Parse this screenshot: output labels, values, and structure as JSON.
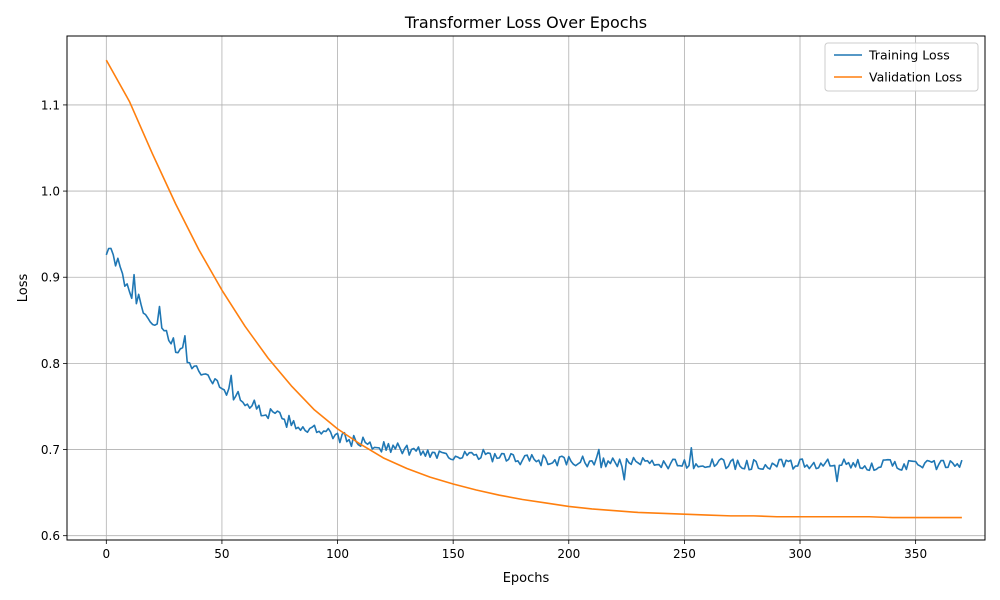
{
  "chart_data": {
    "type": "line",
    "title": "Transformer Loss Over Epochs",
    "xlabel": "Epochs",
    "ylabel": "Loss",
    "xlim": [
      -17,
      380
    ],
    "ylim": [
      0.595,
      1.18
    ],
    "xticks": [
      0,
      50,
      100,
      150,
      200,
      250,
      300,
      350
    ],
    "yticks": [
      0.6,
      0.7,
      0.8,
      0.9,
      1.0,
      1.1
    ],
    "ytick_labels": [
      "0.6",
      "0.7",
      "0.8",
      "0.9",
      "1.0",
      "1.1"
    ],
    "grid": true,
    "legend_position": "top-right",
    "epochs": {
      "start": 0,
      "end": 370
    },
    "series": [
      {
        "name": "Training Loss",
        "color": "#1f77b4",
        "trend": {
          "start": 0.935,
          "plateau": 0.682,
          "decay_rate": 0.0205
        },
        "noise_amplitude": 0.0065,
        "notable_points": [
          {
            "x": 5,
            "y": 0.922
          },
          {
            "x": 12,
            "y": 0.903
          },
          {
            "x": 23,
            "y": 0.866
          },
          {
            "x": 34,
            "y": 0.832
          },
          {
            "x": 54,
            "y": 0.786
          },
          {
            "x": 163,
            "y": 0.7
          },
          {
            "x": 213,
            "y": 0.7
          },
          {
            "x": 224,
            "y": 0.665
          },
          {
            "x": 253,
            "y": 0.702
          },
          {
            "x": 316,
            "y": 0.663
          }
        ]
      },
      {
        "name": "Validation Loss",
        "color": "#ff7f0e",
        "points": [
          [
            0,
            1.152
          ],
          [
            10,
            1.104
          ],
          [
            20,
            1.043
          ],
          [
            30,
            0.985
          ],
          [
            40,
            0.932
          ],
          [
            50,
            0.885
          ],
          [
            60,
            0.843
          ],
          [
            70,
            0.806
          ],
          [
            80,
            0.774
          ],
          [
            90,
            0.746
          ],
          [
            100,
            0.724
          ],
          [
            110,
            0.706
          ],
          [
            120,
            0.69
          ],
          [
            130,
            0.678
          ],
          [
            140,
            0.668
          ],
          [
            150,
            0.66
          ],
          [
            160,
            0.653
          ],
          [
            170,
            0.647
          ],
          [
            180,
            0.642
          ],
          [
            190,
            0.638
          ],
          [
            200,
            0.634
          ],
          [
            210,
            0.631
          ],
          [
            220,
            0.629
          ],
          [
            230,
            0.627
          ],
          [
            240,
            0.626
          ],
          [
            250,
            0.625
          ],
          [
            260,
            0.624
          ],
          [
            270,
            0.623
          ],
          [
            280,
            0.623
          ],
          [
            290,
            0.622
          ],
          [
            300,
            0.622
          ],
          [
            310,
            0.622
          ],
          [
            320,
            0.622
          ],
          [
            330,
            0.622
          ],
          [
            340,
            0.621
          ],
          [
            350,
            0.621
          ],
          [
            360,
            0.621
          ],
          [
            370,
            0.621
          ]
        ]
      }
    ]
  }
}
